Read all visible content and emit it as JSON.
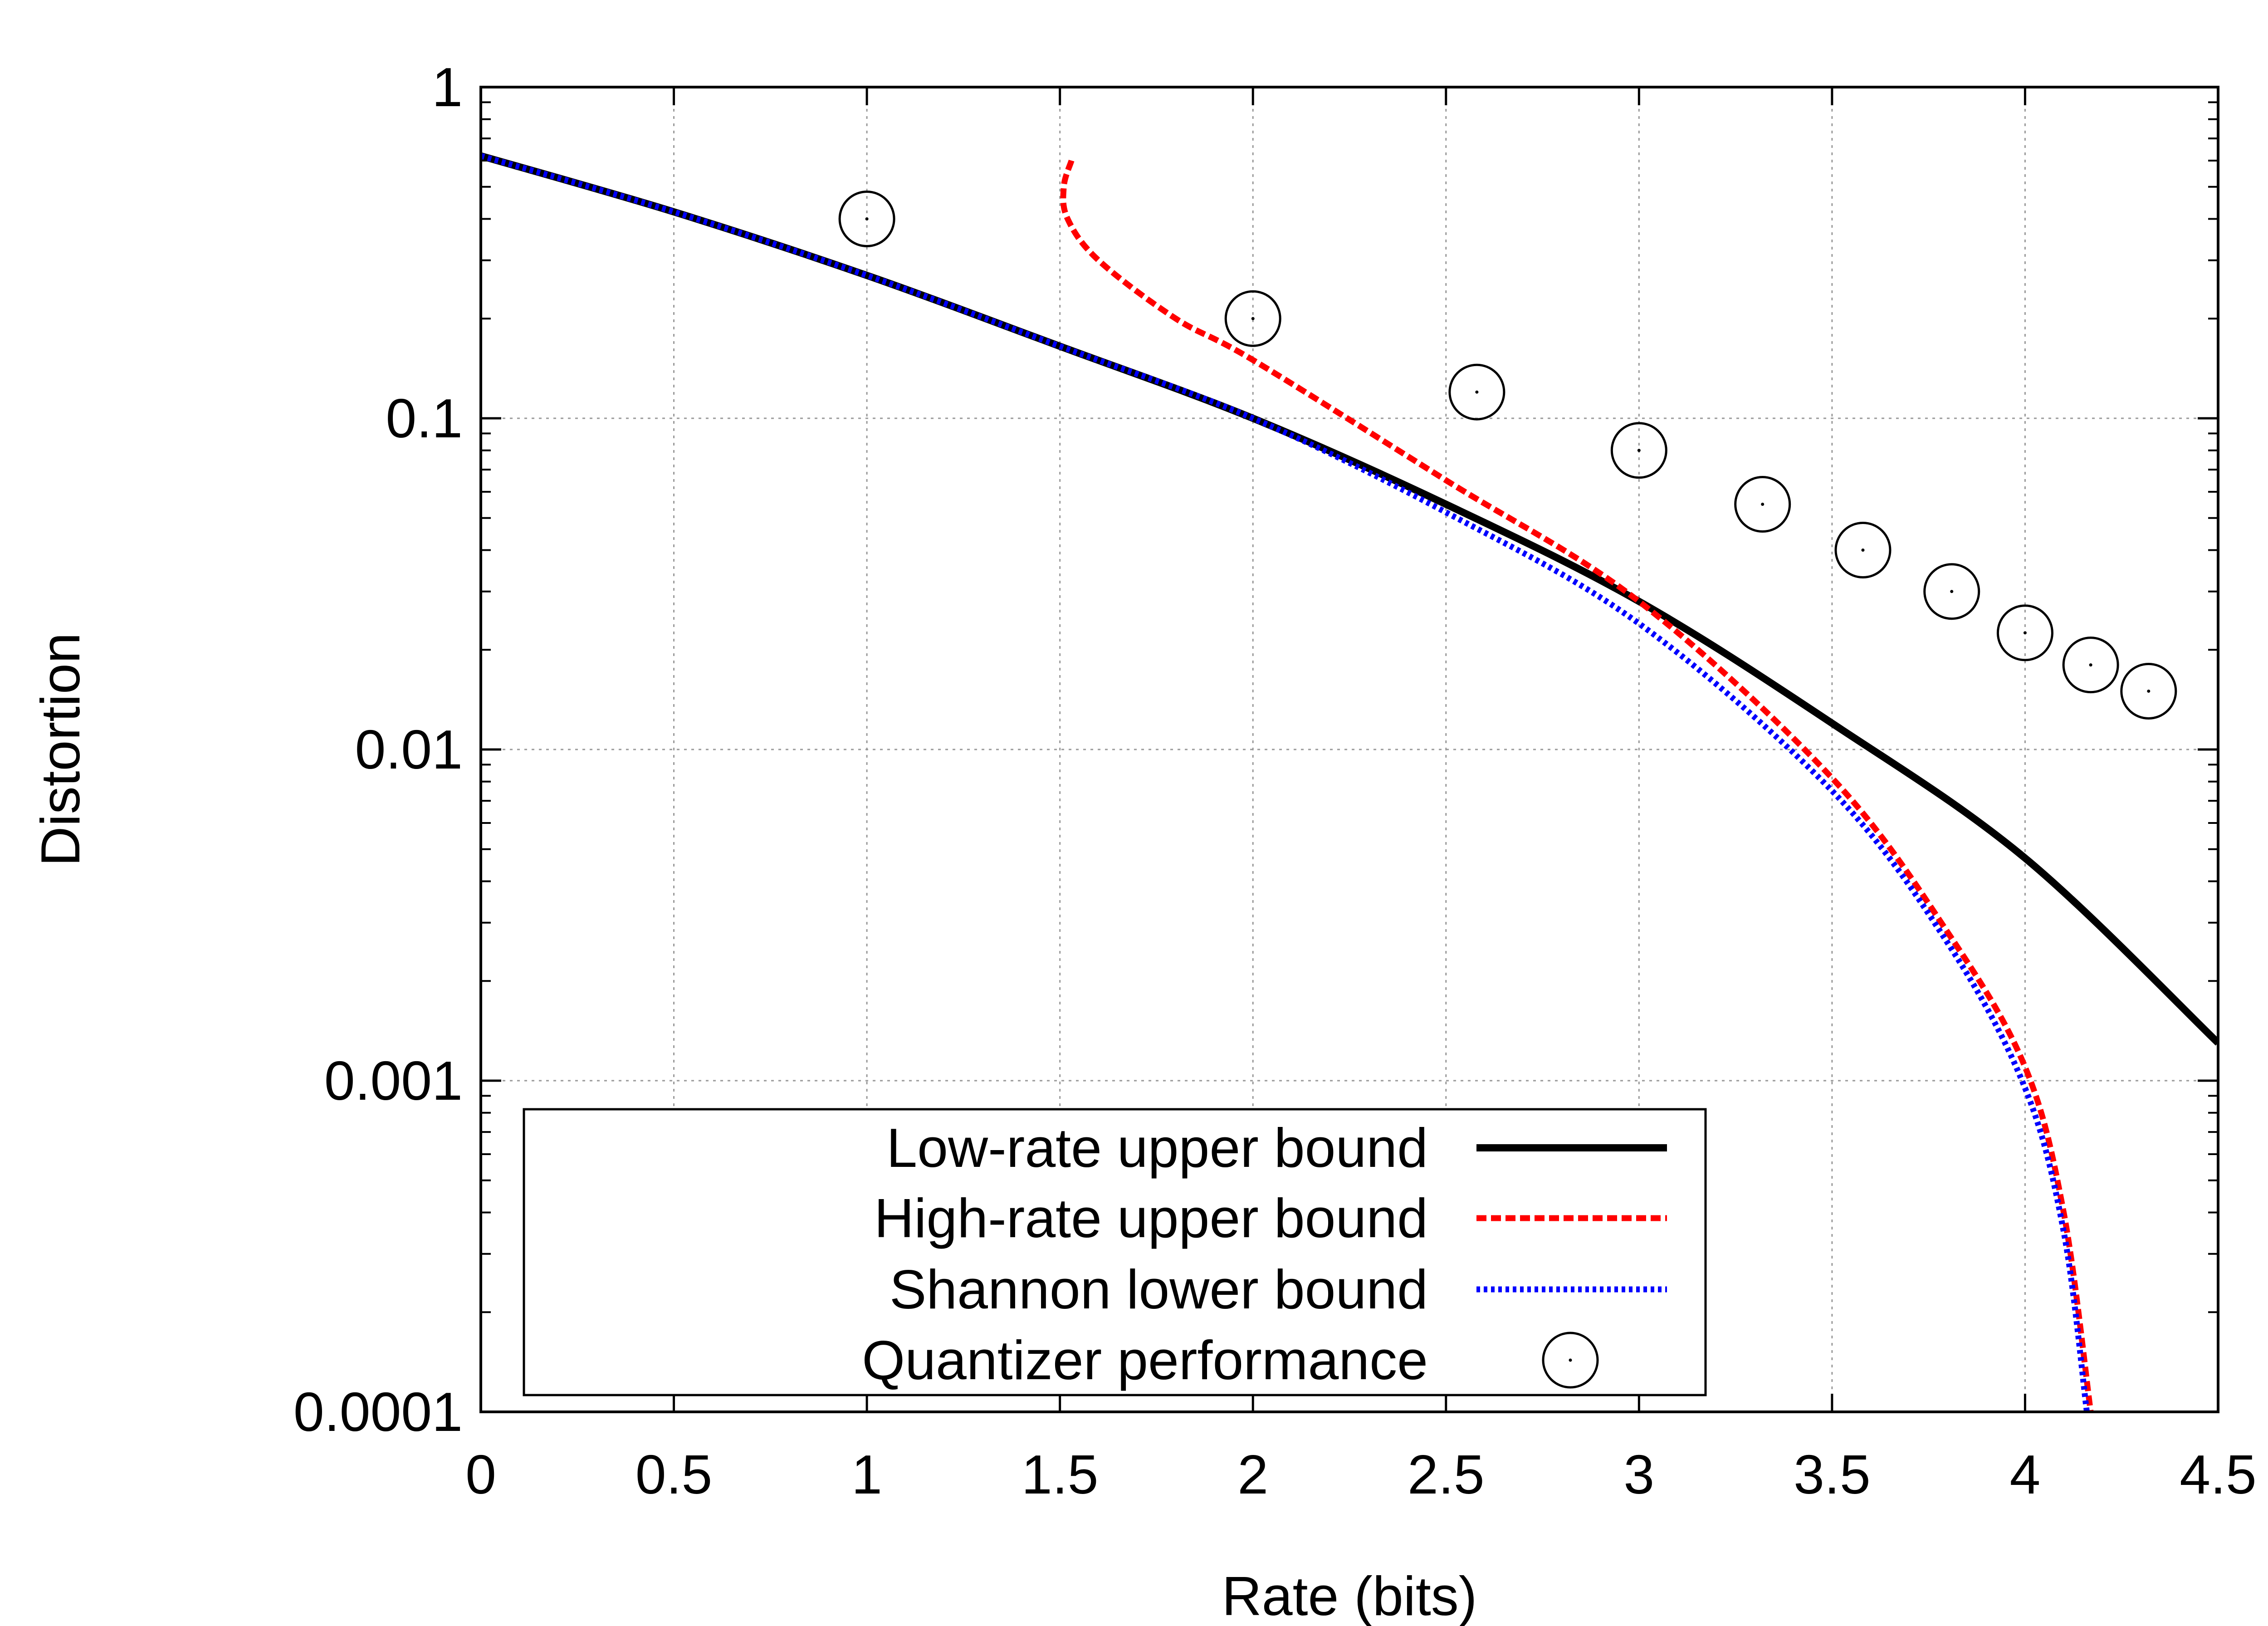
{
  "chart_data": {
    "type": "line",
    "xlabel": "Rate (bits)",
    "ylabel": "Distortion",
    "xlim": [
      0,
      4.5
    ],
    "ylim": [
      0.0001,
      1
    ],
    "yscale": "log",
    "x_ticks": [
      "0",
      "0.5",
      "1",
      "1.5",
      "2",
      "2.5",
      "3",
      "3.5",
      "4",
      "4.5"
    ],
    "y_ticks": [
      "0.0001",
      "0.001",
      "0.01",
      "0.1",
      "1"
    ],
    "grid": true,
    "legend_position": "bottom-left",
    "series": [
      {
        "name": "Low-rate upper bound",
        "style": "solid",
        "color": "#000000",
        "x": [
          0,
          0.5,
          1,
          1.5,
          2,
          2.5,
          3,
          3.5,
          4,
          4.5
        ],
        "y": [
          0.62,
          0.42,
          0.27,
          0.165,
          0.1,
          0.055,
          0.028,
          0.012,
          0.0047,
          0.0013
        ]
      },
      {
        "name": "High-rate upper bound",
        "style": "dashed",
        "color": "#ff0000",
        "x": [
          1.53,
          1.51,
          1.52,
          1.6,
          1.8,
          2.0,
          2.5,
          3.0,
          3.5,
          3.8,
          4.0,
          4.1,
          4.17
        ],
        "y": [
          0.6,
          0.5,
          0.4,
          0.3,
          0.2,
          0.15,
          0.065,
          0.028,
          0.0082,
          0.0028,
          0.0011,
          0.0004,
          0.0001
        ]
      },
      {
        "name": "Shannon lower bound",
        "style": "dotted",
        "color": "#0000ff",
        "x": [
          0,
          0.5,
          1,
          1.5,
          2,
          2.5,
          3,
          3.5,
          3.8,
          4.0,
          4.1,
          4.16
        ],
        "y": [
          0.62,
          0.42,
          0.27,
          0.165,
          0.1,
          0.052,
          0.024,
          0.0075,
          0.0026,
          0.00095,
          0.00035,
          0.0001
        ]
      },
      {
        "name": "Quantizer performance",
        "style": "points",
        "marker": "circle",
        "color": "#000000",
        "x": [
          1.0,
          2.0,
          2.58,
          3.0,
          3.32,
          3.58,
          3.81,
          4.0,
          4.17,
          4.32
        ],
        "y": [
          0.4,
          0.2,
          0.12,
          0.08,
          0.055,
          0.04,
          0.03,
          0.0225,
          0.018,
          0.015
        ]
      }
    ]
  }
}
